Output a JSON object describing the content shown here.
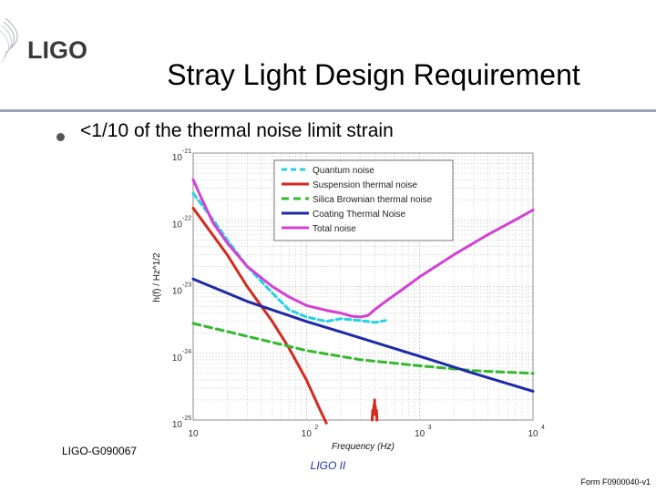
{
  "header": {
    "logo_text": "LIGO",
    "title": "Stray Light Design Requirement"
  },
  "bullet": {
    "text": "<1/10 of the thermal noise limit strain"
  },
  "footer": {
    "doc_id": "LIGO-G090067",
    "center_label": "LIGO II",
    "form_id": "Form F0900040-v1"
  },
  "colors": {
    "logo": "#3a3a3a",
    "title_rule": "#9aa3b4",
    "footer_label": "#1a2fa8"
  },
  "chart_data": {
    "type": "line",
    "xlabel": "Frequency (Hz)",
    "ylabel": "h(f) / Hz^1/2",
    "xscale": "log",
    "yscale": "log",
    "xlim": [
      10,
      10000
    ],
    "ylim": [
      1e-25,
      1e-21
    ],
    "x_ticks": [
      {
        "value": 10,
        "base": "10",
        "exp": ""
      },
      {
        "value": 100,
        "base": "10",
        "exp": "2"
      },
      {
        "value": 1000,
        "base": "10",
        "exp": "3"
      },
      {
        "value": 10000,
        "base": "10",
        "exp": "4"
      }
    ],
    "y_ticks": [
      {
        "value": 1e-21,
        "base": "10",
        "exp": "-21"
      },
      {
        "value": 1e-22,
        "base": "10",
        "exp": "-22"
      },
      {
        "value": 1e-23,
        "base": "10",
        "exp": "-23"
      },
      {
        "value": 1e-24,
        "base": "10",
        "exp": "-24"
      },
      {
        "value": 1e-25,
        "base": "10",
        "exp": "-25"
      }
    ],
    "grid": true,
    "legend_position": "top-right",
    "series": [
      {
        "name": "Quantum noise",
        "color": "#22d3e6",
        "dash": "6,4",
        "x": [
          10,
          15,
          20,
          30,
          50,
          70,
          100,
          150,
          200,
          300,
          400,
          500
        ],
        "y": [
          2.5e-22,
          1e-22,
          5e-23,
          2e-23,
          8e-24,
          4.5e-24,
          3.5e-24,
          3e-24,
          3.3e-24,
          3.1e-24,
          2.9e-24,
          3.1e-24
        ]
      },
      {
        "name": "Suspension thermal noise",
        "color": "#d42a1e",
        "dash": "",
        "x": [
          10,
          20,
          30,
          50,
          70,
          100,
          130,
          150
        ],
        "y": [
          1.5e-22,
          3e-23,
          1e-23,
          3e-24,
          1.2e-24,
          4e-25,
          1.5e-25,
          9e-26
        ]
      },
      {
        "name": "Silica Brownian thermal noise",
        "color": "#35b82e",
        "dash": "8,5",
        "x": [
          10,
          30,
          100,
          300,
          1000,
          3000,
          10000
        ],
        "y": [
          2.8e-24,
          1.8e-24,
          1.1e-24,
          8e-25,
          6.5e-25,
          5.5e-25,
          5e-25
        ]
      },
      {
        "name": "Coating Thermal Noise",
        "color": "#1e2aa6",
        "dash": "",
        "x": [
          10,
          30,
          100,
          300,
          1000,
          3000,
          10000
        ],
        "y": [
          1.3e-23,
          6e-24,
          3e-24,
          1.7e-24,
          9e-25,
          5e-25,
          2.7e-25
        ]
      },
      {
        "name": "Total noise",
        "color": "#d43fd4",
        "dash": "",
        "x": [
          10,
          12,
          15,
          20,
          30,
          50,
          70,
          100,
          150,
          200,
          250,
          300,
          350,
          400,
          500,
          700,
          1000,
          2000,
          4000,
          7000,
          10000
        ],
        "y": [
          4e-22,
          2e-22,
          9e-23,
          4.5e-23,
          2e-23,
          1e-23,
          7e-24,
          5.2e-24,
          4.4e-24,
          4e-24,
          3.6e-24,
          3.5e-24,
          3.7e-24,
          4.5e-24,
          6e-24,
          9e-24,
          1.4e-23,
          3e-23,
          6e-23,
          1e-22,
          1.4e-22
        ]
      },
      {
        "name": "",
        "color": "#d42a1e",
        "dash": "",
        "x": [
          380,
          385,
          390,
          395,
          398,
          400,
          402,
          405,
          410,
          415,
          420
        ],
        "y": [
          1e-25,
          1.4e-25,
          1.2e-25,
          1.7e-25,
          1.3e-25,
          2e-25,
          1.3e-25,
          1.6e-25,
          1.2e-25,
          1.4e-25,
          1e-25
        ]
      }
    ]
  }
}
